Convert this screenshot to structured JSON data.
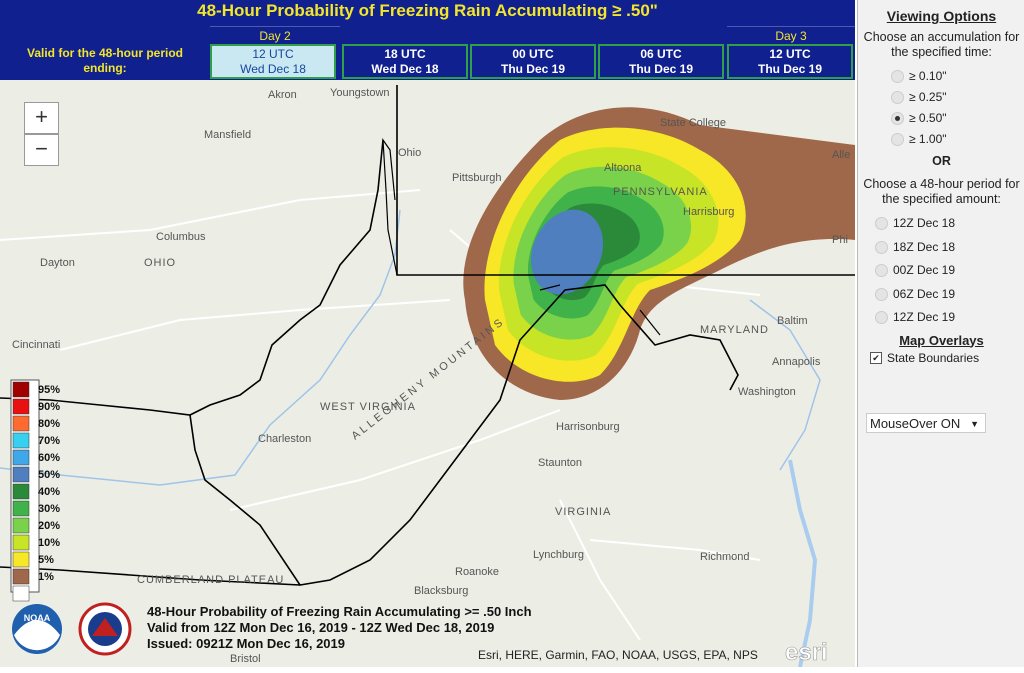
{
  "header": {
    "title": "48-Hour Probability of Freezing Rain Accumulating ≥ .50\"",
    "day_labels": [
      "Day 2",
      "Day 3"
    ],
    "period_label": "Valid for the 48-hour period ending:",
    "periods": [
      {
        "time": "12 UTC",
        "date": "Wed Dec 18",
        "selected": true
      },
      {
        "time": "18 UTC",
        "date": "Wed Dec 18",
        "selected": false
      },
      {
        "time": "00 UTC",
        "date": "Thu Dec 19",
        "selected": false
      },
      {
        "time": "06 UTC",
        "date": "Thu Dec 19",
        "selected": false
      },
      {
        "time": "12 UTC",
        "date": "Thu Dec 19",
        "selected": false
      }
    ]
  },
  "map": {
    "zoom_in": "+",
    "zoom_out": "−",
    "places": [
      "Akron",
      "Youngstown",
      "Mansfield",
      "Pittsburgh",
      "State College",
      "Altoona",
      "PENNSYLVANIA",
      "Harrisburg",
      "Columbus",
      "Dayton",
      "OHIO",
      "Cincinnati",
      "Phi",
      "Alle",
      "MARYLAND",
      "Baltim",
      "Annapolis",
      "Washington",
      "WEST VIRGINIA",
      "Charleston",
      "Harrisonburg",
      "Staunton",
      "VIRGINIA",
      "Lynchburg",
      "Richmond",
      "Roanoke",
      "Blacksburg",
      "CUMBERLAND PLATEAU",
      "ALLEGHENY MOUNTAINS",
      "Bristol",
      "Ohio"
    ],
    "legend": [
      {
        "label": "95%",
        "color": "#a00000"
      },
      {
        "label": "90%",
        "color": "#e81010"
      },
      {
        "label": "80%",
        "color": "#ff6a30"
      },
      {
        "label": "70%",
        "color": "#38d0f0"
      },
      {
        "label": "60%",
        "color": "#40a8e8"
      },
      {
        "label": "50%",
        "color": "#4f7fbf"
      },
      {
        "label": "40%",
        "color": "#2a8a3a"
      },
      {
        "label": "30%",
        "color": "#3fb34a"
      },
      {
        "label": "20%",
        "color": "#7ad24a"
      },
      {
        "label": "10%",
        "color": "#c8e426"
      },
      {
        "label": "5%",
        "color": "#f7e727"
      },
      {
        "label": "1%",
        "color": "#a0684a"
      }
    ],
    "caption": [
      "48-Hour Probability of Freezing Rain Accumulating >= .50 Inch",
      "Valid from 12Z Mon Dec 16, 2019 - 12Z Wed Dec 18, 2019",
      "Issued: 0921Z Mon Dec 16, 2019"
    ],
    "attribution": "Esri, HERE, Garmin, FAO, NOAA, USGS, EPA, NPS",
    "esri_logo": "esri",
    "noaa_logo": "NOAA"
  },
  "sidebar": {
    "title": "Viewing Options",
    "accumulation_prompt": "Choose an accumulation for the specified time:",
    "accumulations": [
      {
        "label": "≥ 0.10\"",
        "selected": false
      },
      {
        "label": "≥ 0.25\"",
        "selected": false
      },
      {
        "label": "≥ 0.50\"",
        "selected": true
      },
      {
        "label": "≥ 1.00\"",
        "selected": false
      }
    ],
    "or": "OR",
    "period_prompt": "Choose a 48-hour period for the specified amount:",
    "periods": [
      {
        "label": "12Z Dec 18",
        "selected": false
      },
      {
        "label": "18Z Dec 18",
        "selected": false
      },
      {
        "label": "00Z Dec 19",
        "selected": false
      },
      {
        "label": "06Z Dec 19",
        "selected": false
      },
      {
        "label": "12Z Dec 19",
        "selected": false
      }
    ],
    "overlays_title": "Map Overlays",
    "state_boundaries": {
      "label": "State Boundaries",
      "checked": true
    },
    "mouseover": "MouseOver ON"
  }
}
